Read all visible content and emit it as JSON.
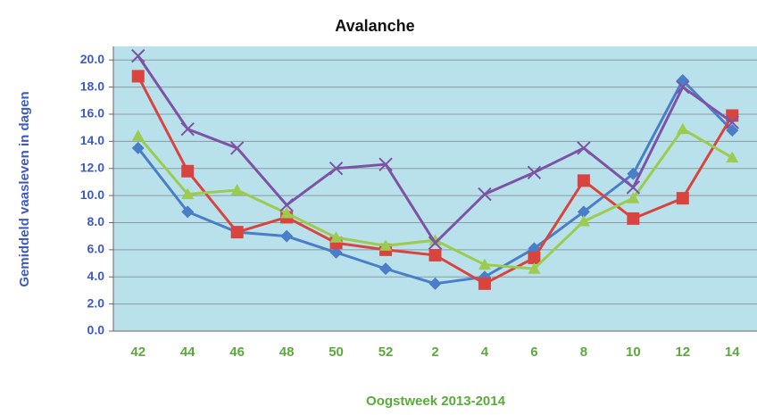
{
  "chart_data": {
    "type": "line",
    "title": "Avalanche",
    "x_label": "Oogstweek 2013-2014",
    "y_label": "Gemiddeld vaasleven in dagen",
    "categories": [
      "42",
      "44",
      "46",
      "48",
      "50",
      "52",
      "2",
      "4",
      "6",
      "8",
      "10",
      "12",
      "14"
    ],
    "ylim": [
      0,
      21
    ],
    "yticks": [
      {
        "value": 0,
        "label": "0.0"
      },
      {
        "value": 2,
        "label": "2.0"
      },
      {
        "value": 4,
        "label": "4.0"
      },
      {
        "value": 6,
        "label": "6.0"
      },
      {
        "value": 8,
        "label": "8.0"
      },
      {
        "value": 10,
        "label": "10.0"
      },
      {
        "value": 12,
        "label": "12.0"
      },
      {
        "value": 14,
        "label": "14.0"
      },
      {
        "value": 16,
        "label": "16.0"
      },
      {
        "value": 18,
        "label": "18.0"
      },
      {
        "value": 20,
        "label": "20.0"
      }
    ],
    "grid": true,
    "series": [
      {
        "color": "#4a7ec9",
        "marker": "diamond",
        "values": [
          13.5,
          8.8,
          7.3,
          7.0,
          5.8,
          4.6,
          3.5,
          4.0,
          6.1,
          8.8,
          11.6,
          18.5,
          14.8
        ]
      },
      {
        "color": "#d9443f",
        "marker": "square",
        "values": [
          18.8,
          11.8,
          7.3,
          8.4,
          6.5,
          6.0,
          5.6,
          3.5,
          5.4,
          11.1,
          8.3,
          9.8,
          15.9
        ]
      },
      {
        "color": "#9bcb4f",
        "marker": "triangle",
        "values": [
          14.4,
          10.1,
          10.4,
          8.7,
          6.9,
          6.3,
          6.7,
          4.9,
          4.6,
          8.1,
          9.8,
          14.9,
          12.8
        ]
      },
      {
        "color": "#7d53a6",
        "marker": "x",
        "values": [
          20.3,
          14.9,
          13.5,
          9.3,
          12.0,
          12.3,
          6.5,
          10.1,
          11.7,
          13.5,
          10.6,
          18.0,
          15.4
        ]
      }
    ]
  }
}
